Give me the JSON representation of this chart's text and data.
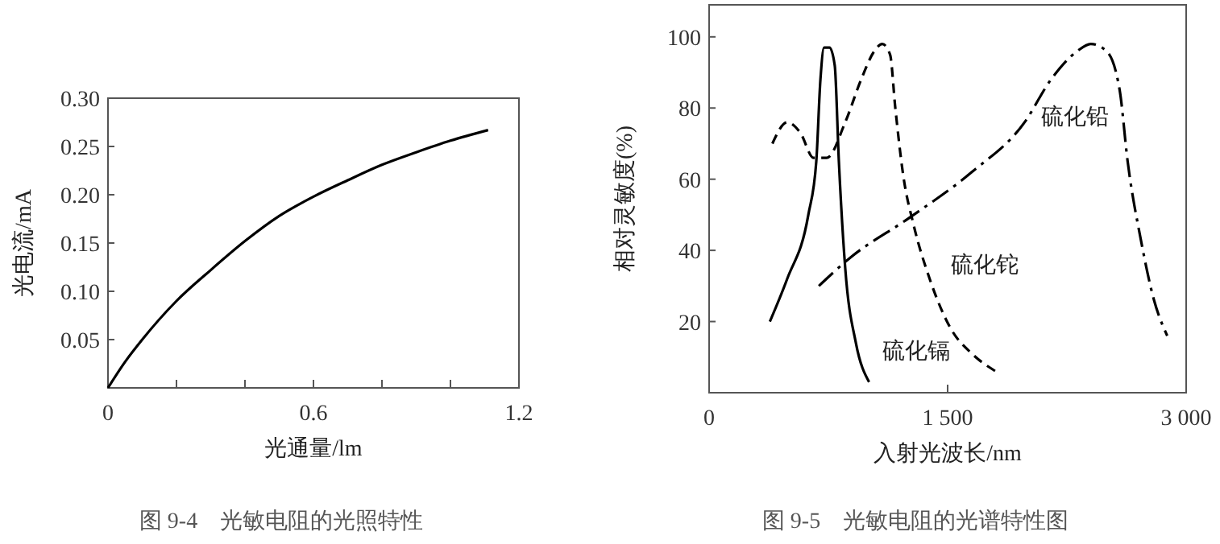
{
  "chart_data": [
    {
      "type": "line",
      "title": "图 9-4　光敏电阻的光照特性",
      "xlabel": "光通量/lm",
      "ylabel": "光电流/mA",
      "xlim": [
        0,
        1.2
      ],
      "ylim": [
        0,
        0.3
      ],
      "xticks": [
        0,
        {
          "value": 0.2,
          "label": null
        },
        {
          "value": 0.4,
          "label": null
        },
        0.6,
        {
          "value": 0.8,
          "label": null
        },
        {
          "value": 1.0,
          "label": null
        },
        1.2
      ],
      "yticks": [
        0.05,
        {
          "value": 0.1,
          "label": "0.10"
        },
        0.15,
        {
          "value": 0.2,
          "label": "0.20"
        },
        0.25,
        {
          "value": 0.3,
          "label": "0.30"
        }
      ],
      "x": [
        0,
        0.05,
        0.1,
        0.2,
        0.3,
        0.4,
        0.5,
        0.6,
        0.7,
        0.8,
        0.9,
        1.0,
        1.11
      ],
      "series": [
        {
          "color": "#000000",
          "values": [
            0,
            0.027,
            0.05,
            0.09,
            0.122,
            0.152,
            0.178,
            0.198,
            0.215,
            0.231,
            0.244,
            0.256,
            0.267
          ]
        }
      ],
      "marker": "none",
      "line_style": "solid"
    },
    {
      "type": "line",
      "title": "图 9-5　光敏电阻的光谱特性图",
      "xlabel": "入射光波长/nm",
      "ylabel": "相对灵敏度(%)",
      "xlim": [
        0,
        3000
      ],
      "ylim": [
        0,
        109
      ],
      "xticks": [
        0,
        {
          "value": 1500,
          "label": "1 500"
        },
        {
          "value": 3000,
          "label": "3 000"
        }
      ],
      "yticks": [
        20,
        40,
        60,
        80,
        100
      ],
      "series": [
        {
          "name": "硫化镉",
          "color": "#000000",
          "line_style": "solid",
          "x": [
            382,
            491,
            624,
            674,
            700,
            723,
            757,
            790,
            816,
            856,
            923,
            1006
          ],
          "values": [
            20,
            32,
            50,
            65,
            88,
            97,
            97,
            92,
            65,
            35,
            14,
            3
          ]
        },
        {
          "name": "硫化铊",
          "color": "#000000",
          "line_style": "dashed",
          "x": [
            398,
            491,
            574,
            657,
            740,
            856,
            956,
            1039,
            1089,
            1138,
            1171,
            1221,
            1287,
            1387,
            1520,
            1652,
            1802
          ],
          "values": [
            70,
            76,
            73,
            66,
            66,
            76,
            88,
            96,
            98,
            95,
            80,
            61,
            47,
            32,
            18,
            11,
            6
          ]
        },
        {
          "name": "硫化铅",
          "color": "#000000",
          "line_style": "dashdot",
          "x": [
            690,
            889,
            1254,
            1652,
            1984,
            2150,
            2316,
            2400,
            2499,
            2582,
            2632,
            2715,
            2798,
            2881
          ],
          "values": [
            30,
            38,
            49,
            62,
            76,
            88,
            96,
            98,
            96,
            85,
            65,
            43,
            26,
            16
          ]
        }
      ],
      "marker": "none"
    }
  ]
}
